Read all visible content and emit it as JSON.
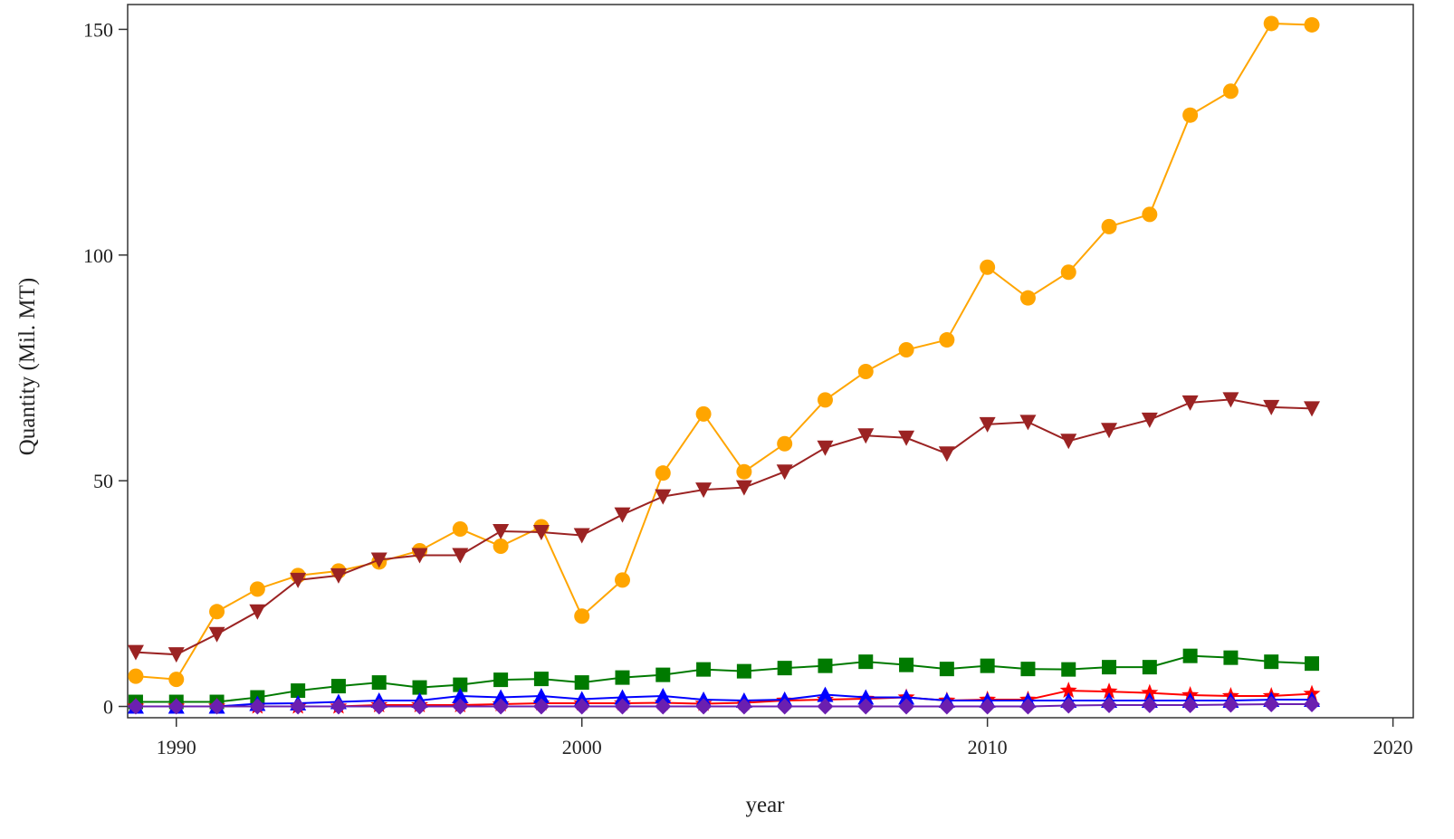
{
  "chart_data": {
    "type": "line",
    "title": "",
    "xlabel": "year",
    "ylabel": "Quantity (Mil. MT)",
    "xlim": [
      1988.8,
      2020.5
    ],
    "ylim": [
      -2.5,
      155.5
    ],
    "xticks": [
      1990,
      2000,
      2010,
      2020
    ],
    "yticks": [
      0,
      50,
      100,
      150
    ],
    "grid": false,
    "x": [
      1989,
      1990,
      1991,
      1992,
      1993,
      1994,
      1995,
      1996,
      1997,
      1998,
      1999,
      2000,
      2001,
      2002,
      2003,
      2004,
      2005,
      2006,
      2007,
      2008,
      2009,
      2010,
      2011,
      2012,
      2013,
      2014,
      2015,
      2016,
      2017,
      2018
    ],
    "series": [
      {
        "color": "#FFA500",
        "marker": "circle",
        "values": [
          6.7,
          6.0,
          21.0,
          26.0,
          29.0,
          30.0,
          32.0,
          34.5,
          39.3,
          35.5,
          39.8,
          20.0,
          28.0,
          51.7,
          64.8,
          52.0,
          58.2,
          67.9,
          74.2,
          79.0,
          81.2,
          97.3,
          90.5,
          96.2,
          106.3,
          109.0,
          131.0,
          136.3,
          151.3,
          151.0
        ]
      },
      {
        "color": "#9B2323",
        "marker": "triangle-down",
        "values": [
          12.0,
          11.5,
          16.0,
          21.0,
          28.0,
          29.0,
          32.5,
          33.5,
          33.5,
          38.8,
          38.6,
          37.9,
          42.5,
          46.5,
          48.0,
          48.5,
          52.0,
          57.3,
          60.0,
          59.5,
          56.0,
          62.5,
          63.0,
          58.8,
          61.2,
          63.5,
          67.3,
          68.0,
          66.3,
          66.0
        ]
      },
      {
        "color": "#007A00",
        "marker": "square",
        "values": [
          1.0,
          1.0,
          1.0,
          2.0,
          3.5,
          4.5,
          5.3,
          4.2,
          4.8,
          5.9,
          6.1,
          5.3,
          6.4,
          7.0,
          8.2,
          7.8,
          8.5,
          9.0,
          9.9,
          9.2,
          8.3,
          9.0,
          8.3,
          8.2,
          8.7,
          8.7,
          11.2,
          10.8,
          9.9,
          9.5
        ]
      },
      {
        "color": "#FF0000",
        "marker": "star",
        "values": [
          0.0,
          0.0,
          0.0,
          0.0,
          0.0,
          0.0,
          0.3,
          0.3,
          0.3,
          0.5,
          0.7,
          0.7,
          0.7,
          0.8,
          0.6,
          0.8,
          1.3,
          1.5,
          1.7,
          2.0,
          1.3,
          1.5,
          1.5,
          3.5,
          3.3,
          3.0,
          2.5,
          2.3,
          2.3,
          2.8
        ]
      },
      {
        "color": "#0000FF",
        "marker": "triangle-up",
        "values": [
          0.0,
          0.0,
          0.0,
          0.6,
          0.7,
          1.0,
          1.3,
          1.3,
          2.3,
          2.0,
          2.3,
          1.6,
          2.0,
          2.3,
          1.5,
          1.3,
          1.5,
          2.6,
          2.0,
          2.0,
          1.3,
          1.3,
          1.3,
          1.3,
          1.3,
          1.3,
          1.3,
          1.3,
          1.5,
          1.5
        ]
      },
      {
        "color": "#6B1FB0",
        "marker": "diamond",
        "values": [
          0.0,
          0.0,
          0.0,
          0.0,
          0.0,
          0.0,
          0.0,
          0.0,
          0.0,
          0.0,
          0.0,
          0.0,
          0.0,
          0.0,
          0.0,
          0.0,
          0.0,
          0.0,
          0.0,
          0.0,
          0.0,
          0.0,
          0.0,
          0.2,
          0.3,
          0.3,
          0.3,
          0.4,
          0.5,
          0.5
        ]
      }
    ]
  }
}
